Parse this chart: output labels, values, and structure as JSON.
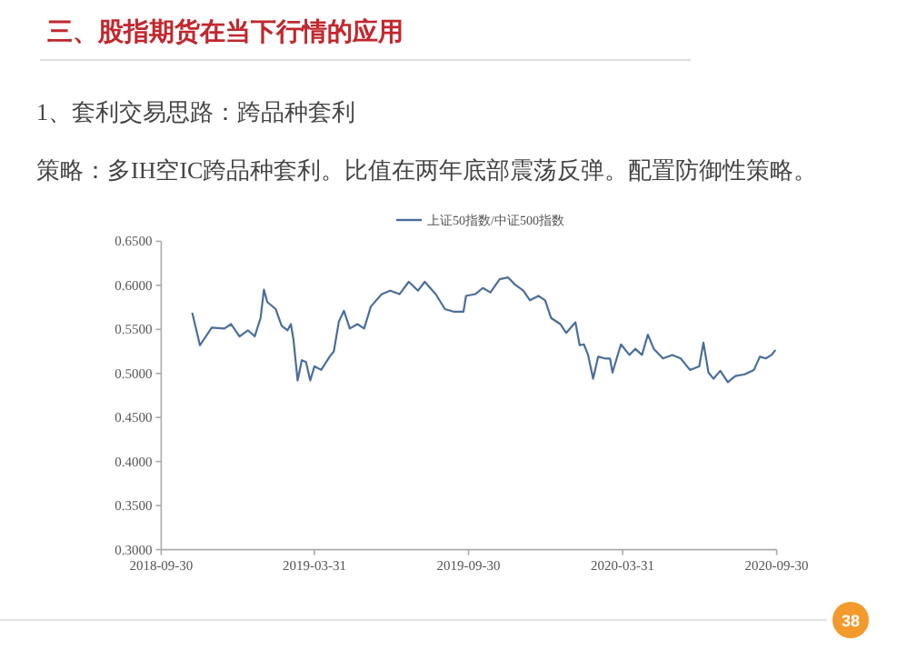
{
  "chart_data": {
    "type": "line",
    "title": "三、股指期货在当下行情的应用",
    "subtitle": "1、套利交易思路：跨品种套利",
    "annotations": [
      "策略：多IH空IC跨品种套利。比值在两年底部震荡反弹。配置防御性策略。",
      "38"
    ],
    "x": [
      "2018-11-06",
      "2018-11-15",
      "2018-11-22",
      "2018-11-29",
      "2018-12-14",
      "2018-12-22",
      "2019-01-01",
      "2019-01-11",
      "2019-01-19",
      "2019-01-26",
      "2019-01-30",
      "2019-02-03",
      "2019-02-13",
      "2019-02-20",
      "2019-02-27",
      "2019-03-03",
      "2019-03-06",
      "2019-03-11",
      "2019-03-16",
      "2019-03-21",
      "2019-03-26",
      "2019-03-31",
      "2019-04-08",
      "2019-04-18",
      "2019-04-23",
      "2019-04-29",
      "2019-05-05",
      "2019-05-12",
      "2019-05-21",
      "2019-05-29",
      "2019-06-06",
      "2019-06-19",
      "2019-06-29",
      "2019-07-10",
      "2019-07-21",
      "2019-08-01",
      "2019-08-09",
      "2019-08-22",
      "2019-09-02",
      "2019-09-13",
      "2019-09-24",
      "2019-09-27",
      "2019-10-08",
      "2019-10-17",
      "2019-10-26",
      "2019-11-06",
      "2019-11-16",
      "2019-11-24",
      "2019-12-04",
      "2019-12-12",
      "2019-12-22",
      "2019-12-30",
      "2020-01-06",
      "2020-01-17",
      "2020-01-24",
      "2020-02-04",
      "2020-02-09",
      "2020-02-14",
      "2020-02-19",
      "2020-02-25",
      "2020-03-02",
      "2020-03-10",
      "2020-03-16",
      "2020-03-19",
      "2020-03-29",
      "2020-04-08",
      "2020-04-15",
      "2020-04-23",
      "2020-04-30",
      "2020-05-07",
      "2020-05-18",
      "2020-05-29",
      "2020-06-08",
      "2020-06-19",
      "2020-06-30",
      "2020-07-05",
      "2020-07-11",
      "2020-07-17",
      "2020-07-25",
      "2020-08-03",
      "2020-08-12",
      "2020-08-23",
      "2020-09-03",
      "2020-09-10",
      "2020-09-17",
      "2020-09-24",
      "2020-09-28"
    ],
    "series": [
      {
        "name": "上证50指数/中证500指数",
        "color": "#4a6e9a",
        "values": [
          0.568,
          0.532,
          0.542,
          0.552,
          0.551,
          0.556,
          0.542,
          0.549,
          0.542,
          0.563,
          0.595,
          0.581,
          0.573,
          0.554,
          0.549,
          0.556,
          0.539,
          0.492,
          0.515,
          0.513,
          0.492,
          0.508,
          0.504,
          0.519,
          0.525,
          0.559,
          0.571,
          0.551,
          0.556,
          0.551,
          0.576,
          0.59,
          0.594,
          0.59,
          0.604,
          0.594,
          0.604,
          0.59,
          0.573,
          0.57,
          0.57,
          0.588,
          0.59,
          0.597,
          0.592,
          0.607,
          0.609,
          0.601,
          0.594,
          0.583,
          0.588,
          0.583,
          0.563,
          0.556,
          0.546,
          0.558,
          0.532,
          0.533,
          0.521,
          0.494,
          0.519,
          0.517,
          0.517,
          0.501,
          0.533,
          0.521,
          0.528,
          0.521,
          0.544,
          0.528,
          0.517,
          0.521,
          0.517,
          0.504,
          0.508,
          0.535,
          0.501,
          0.494,
          0.503,
          0.49,
          0.497,
          0.499,
          0.504,
          0.519,
          0.517,
          0.521,
          0.526
        ]
      }
    ],
    "xlim": [
      "2018-09-30",
      "2020-09-30"
    ],
    "xticks": [
      "2018-09-30",
      "2019-03-31",
      "2019-09-30",
      "2020-03-31",
      "2020-09-30"
    ],
    "ylim": [
      0.3,
      0.65
    ],
    "yticks": [
      {
        "value": 0.3,
        "label": "0.3000"
      },
      {
        "value": 0.35,
        "label": "0.3500"
      },
      {
        "value": 0.4,
        "label": "0.4000"
      },
      {
        "value": 0.45,
        "label": "0.4500"
      },
      {
        "value": 0.5,
        "label": "0.5000"
      },
      {
        "value": 0.55,
        "label": "0.5500"
      },
      {
        "value": 0.6,
        "label": "0.6000"
      },
      {
        "value": 0.65,
        "label": "0.6500"
      }
    ],
    "legend": "top",
    "grid": false,
    "marker": "none",
    "line_style": "solid"
  }
}
